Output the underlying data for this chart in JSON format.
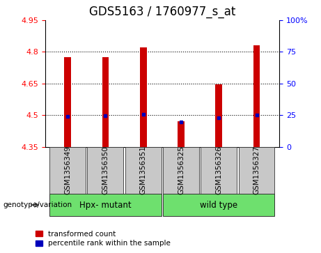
{
  "title": "GDS5163 / 1760977_s_at",
  "samples": [
    "GSM1356349",
    "GSM1356350",
    "GSM1356351",
    "GSM1356325",
    "GSM1356326",
    "GSM1356327"
  ],
  "red_bar_values": [
    4.775,
    4.775,
    4.82,
    4.47,
    4.645,
    4.83
  ],
  "blue_marker_values": [
    4.493,
    4.497,
    4.503,
    4.468,
    4.488,
    4.502
  ],
  "bar_bottom": 4.35,
  "ylim": [
    4.35,
    4.95
  ],
  "ylim_right": [
    0,
    100
  ],
  "yticks_left": [
    4.35,
    4.5,
    4.65,
    4.8,
    4.95
  ],
  "yticks_right": [
    0,
    25,
    50,
    75,
    100
  ],
  "grid_lines": [
    4.5,
    4.65,
    4.8
  ],
  "group1_indices": [
    0,
    1,
    2
  ],
  "group2_indices": [
    3,
    4,
    5
  ],
  "group1_label": "Hpx- mutant",
  "group2_label": "wild type",
  "group_color": "#6EE06E",
  "bar_color": "#CC0000",
  "blue_color": "#0000BB",
  "bar_width": 0.18,
  "legend_red_label": "transformed count",
  "legend_blue_label": "percentile rank within the sample",
  "genotype_label": "genotype/variation",
  "bg_color_plot": "#FFFFFF",
  "bg_color_label": "#C8C8C8",
  "title_fontsize": 12,
  "tick_fontsize": 8,
  "label_fontsize": 7.5
}
